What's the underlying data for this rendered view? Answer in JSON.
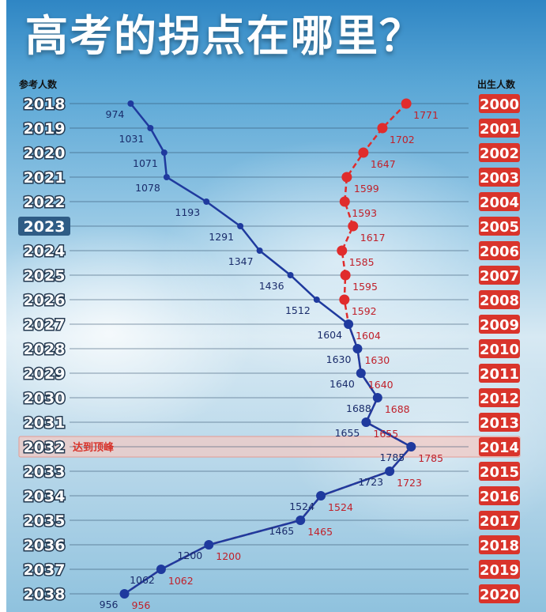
{
  "title": "高考的拐点在哪里？",
  "chart_data": {
    "type": "line",
    "left_header": "参考人数",
    "right_header": "出生人数",
    "exam_years": [
      "2018",
      "2019",
      "2020",
      "2021",
      "2022",
      "2023",
      "2024",
      "2025",
      "2026",
      "2027",
      "2028",
      "2029",
      "2030",
      "2031",
      "2032",
      "2033",
      "2034",
      "2035",
      "2036",
      "2037",
      "2038"
    ],
    "birth_years": [
      "2000",
      "2001",
      "2002",
      "2003",
      "2004",
      "2005",
      "2006",
      "2007",
      "2008",
      "2009",
      "2010",
      "2011",
      "2012",
      "2013",
      "2014",
      "2015",
      "2016",
      "2017",
      "2018",
      "2019",
      "2020"
    ],
    "current_year": "2023",
    "peak_index": 14,
    "peak_label": "达到顶峰",
    "xlim": [
      900,
      1850
    ],
    "series": [
      {
        "name": "参考人数",
        "values": [
          974,
          1031,
          1071,
          1078,
          1193,
          1291,
          1347,
          1436,
          1512,
          1604,
          1630,
          1640,
          1688,
          1655,
          1785,
          1723,
          1524,
          1465,
          1200,
          1062,
          956
        ],
        "labels": [
          "974",
          "1031",
          "1071",
          "1078",
          "1193",
          "1291",
          "1347",
          "1436",
          "1512",
          "1604",
          "1630",
          "1640",
          "1688",
          "1655",
          "1785",
          "1723",
          "1524",
          "1465",
          "1200",
          "1062",
          "956"
        ]
      },
      {
        "name": "出生人数",
        "values": [
          1771,
          1702,
          1647,
          1599,
          1593,
          1617,
          1585,
          1595,
          1592,
          1604,
          1630,
          1640,
          1688,
          1655,
          1785,
          1723,
          1524,
          1465,
          1200,
          1062,
          956
        ],
        "labels": [
          "1771",
          "1702",
          "1647",
          "1599",
          "1593",
          "1617",
          "1585",
          "1595",
          "1592",
          "1604",
          "1630",
          "1640",
          "1688",
          "1655",
          "1785",
          "1723",
          "1524",
          "1465",
          "1200",
          "1062",
          "956"
        ]
      }
    ],
    "colors": {
      "exam_line": "#1f3a9e",
      "birth_line": "#e02c2c",
      "exam_label": "#1a2c6b",
      "birth_label": "#c0202a",
      "birth_year_box": "#d9342b",
      "current_box": "#2f5c85",
      "peak_band": "#f2c9c4",
      "peak_text": "#d9342b"
    }
  }
}
